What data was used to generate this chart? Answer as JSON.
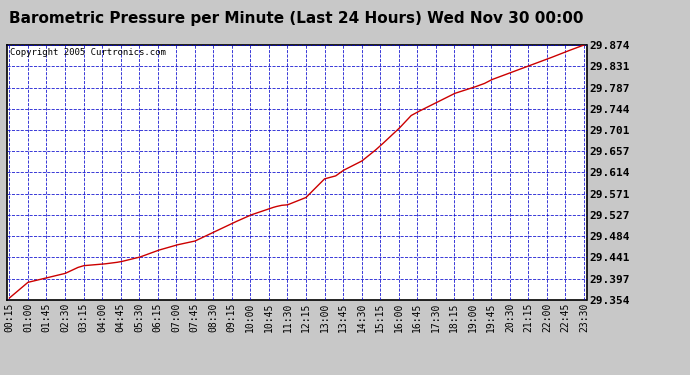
{
  "title": "Barometric Pressure per Minute (Last 24 Hours) Wed Nov 30 00:00",
  "copyright": "Copyright 2005 Curtronics.com",
  "line_color": "#cc0000",
  "grid_color": "#0000cc",
  "bg_color": "#ffffff",
  "outer_bg": "#d0d0d0",
  "border_color": "#000000",
  "ytick_labels": [
    "29.354",
    "29.397",
    "29.441",
    "29.484",
    "29.527",
    "29.571",
    "29.614",
    "29.657",
    "29.701",
    "29.744",
    "29.787",
    "29.831",
    "29.874"
  ],
  "ytick_values": [
    29.354,
    29.397,
    29.441,
    29.484,
    29.527,
    29.571,
    29.614,
    29.657,
    29.701,
    29.744,
    29.787,
    29.831,
    29.874
  ],
  "ylim": [
    29.354,
    29.874
  ],
  "xtick_labels": [
    "00:15",
    "01:00",
    "01:45",
    "02:30",
    "03:15",
    "04:00",
    "04:45",
    "05:30",
    "06:15",
    "07:00",
    "07:45",
    "08:30",
    "09:15",
    "10:00",
    "10:45",
    "11:30",
    "12:15",
    "13:00",
    "13:45",
    "14:30",
    "15:15",
    "16:00",
    "16:45",
    "17:30",
    "18:15",
    "19:00",
    "19:45",
    "20:30",
    "21:15",
    "22:00",
    "22:45",
    "23:30"
  ],
  "x_key": [
    0.0,
    0.25,
    1.0,
    1.75,
    2.5,
    3.0,
    3.25,
    3.5,
    4.0,
    4.5,
    4.75,
    5.5,
    6.25,
    7.0,
    7.75,
    8.5,
    9.25,
    10.0,
    10.75,
    11.0,
    11.25,
    11.5,
    12.25,
    13.0,
    13.45,
    13.75,
    14.5,
    15.0,
    15.25,
    16.0,
    16.5,
    16.75,
    17.5,
    18.25,
    19.0,
    19.45,
    19.75,
    20.5,
    21.25,
    22.0,
    22.75,
    23.5
  ],
  "y_key": [
    29.354,
    29.358,
    29.39,
    29.399,
    29.408,
    29.42,
    29.424,
    29.425,
    29.427,
    29.43,
    29.432,
    29.441,
    29.455,
    29.466,
    29.474,
    29.492,
    29.51,
    29.527,
    29.54,
    29.544,
    29.547,
    29.548,
    29.563,
    29.601,
    29.607,
    29.618,
    29.637,
    29.657,
    29.668,
    29.703,
    29.73,
    29.737,
    29.756,
    29.775,
    29.787,
    29.795,
    29.803,
    29.817,
    29.831,
    29.845,
    29.86,
    29.874
  ],
  "title_fontsize": 11,
  "tick_fontsize": 7,
  "ytick_fontsize": 8,
  "copyright_fontsize": 6.5
}
